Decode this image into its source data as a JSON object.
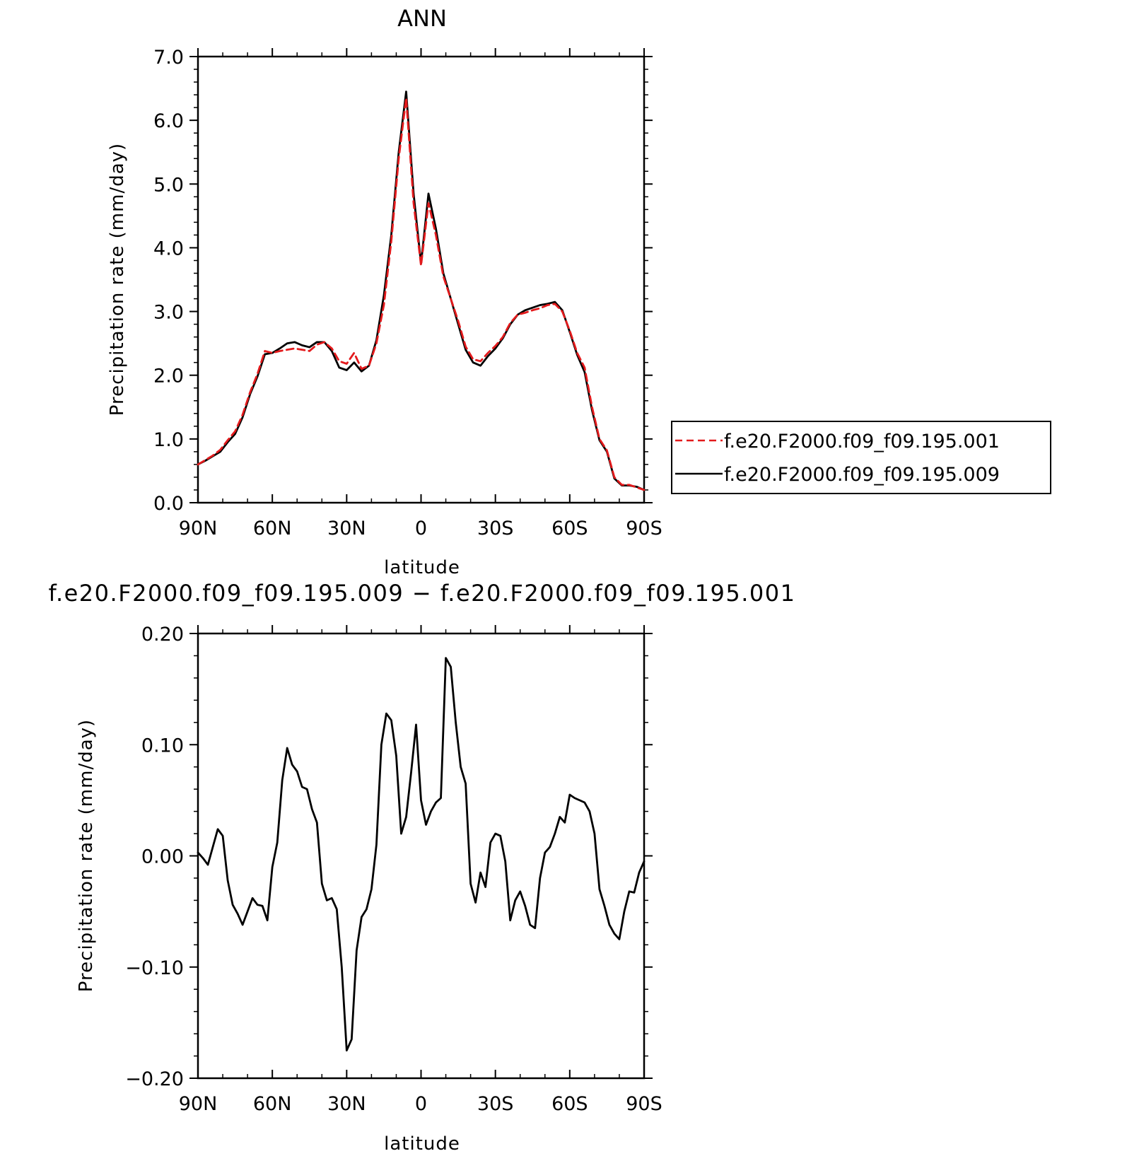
{
  "chart_data": [
    {
      "type": "line",
      "title": "ANN",
      "xlabel": "latitude",
      "ylabel": "Precipitation rate (mm/day)",
      "xlim": [
        90,
        -90
      ],
      "ylim": [
        0.0,
        7.0
      ],
      "xticks": [
        90,
        60,
        30,
        0,
        -30,
        -60,
        -90
      ],
      "xtick_labels": [
        "90N",
        "60N",
        "30N",
        "0",
        "30S",
        "60S",
        "90S"
      ],
      "yticks": [
        0.0,
        1.0,
        2.0,
        3.0,
        4.0,
        5.0,
        6.0,
        7.0
      ],
      "ytick_labels": [
        "0.0",
        "1.0",
        "2.0",
        "3.0",
        "4.0",
        "5.0",
        "6.0",
        "7.0"
      ],
      "grid": false,
      "legend_position": "right",
      "x": [
        90,
        87,
        84,
        81,
        78,
        75,
        72,
        69,
        66,
        63,
        60,
        57,
        54,
        51,
        48,
        45,
        42,
        39,
        36,
        33,
        30,
        27,
        24,
        21,
        18,
        15,
        12,
        9,
        6,
        3,
        0,
        -3,
        -6,
        -9,
        -12,
        -15,
        -18,
        -21,
        -24,
        -27,
        -30,
        -33,
        -36,
        -39,
        -42,
        -45,
        -48,
        -51,
        -54,
        -57,
        -60,
        -63,
        -66,
        -69,
        -72,
        -75,
        -78,
        -81,
        -84,
        -87,
        -90
      ],
      "series": [
        {
          "name": "f.e20.F2000.f09_f09.195.001",
          "color": "#e31a1c",
          "dash": "dashed",
          "values": [
            0.6,
            0.67,
            0.74,
            0.83,
            0.98,
            1.12,
            1.38,
            1.73,
            2.02,
            2.38,
            2.35,
            2.38,
            2.4,
            2.42,
            2.4,
            2.38,
            2.48,
            2.52,
            2.42,
            2.22,
            2.18,
            2.35,
            2.1,
            2.15,
            2.5,
            3.1,
            4.1,
            5.4,
            6.35,
            4.7,
            3.72,
            4.7,
            4.2,
            3.55,
            3.2,
            2.85,
            2.45,
            2.25,
            2.22,
            2.35,
            2.46,
            2.6,
            2.82,
            2.95,
            2.98,
            3.02,
            3.05,
            3.1,
            3.12,
            3.0,
            2.7,
            2.35,
            2.12,
            1.5,
            1.0,
            0.82,
            0.4,
            0.28,
            0.28,
            0.24,
            0.2
          ]
        },
        {
          "name": "f.e20.F2000.f09_f09.195.009",
          "color": "#000000",
          "dash": "solid",
          "values": [
            0.6,
            0.66,
            0.73,
            0.8,
            0.95,
            1.08,
            1.34,
            1.7,
            1.98,
            2.33,
            2.35,
            2.42,
            2.5,
            2.52,
            2.47,
            2.44,
            2.52,
            2.52,
            2.38,
            2.12,
            2.08,
            2.2,
            2.06,
            2.15,
            2.55,
            3.25,
            4.2,
            5.5,
            6.45,
            4.85,
            3.75,
            4.85,
            4.3,
            3.6,
            3.2,
            2.8,
            2.4,
            2.2,
            2.15,
            2.3,
            2.42,
            2.58,
            2.8,
            2.95,
            3.02,
            3.06,
            3.1,
            3.12,
            3.15,
            3.02,
            2.68,
            2.32,
            2.05,
            1.45,
            0.98,
            0.8,
            0.38,
            0.27,
            0.27,
            0.25,
            0.2
          ]
        }
      ]
    },
    {
      "type": "line",
      "title": "f.e20.F2000.f09_f09.195.009 − f.e20.F2000.f09_f09.195.001",
      "xlabel": "latitude",
      "ylabel": "Precipitation rate (mm/day)",
      "xlim": [
        90,
        -90
      ],
      "ylim": [
        -0.2,
        0.2
      ],
      "xticks": [
        90,
        60,
        30,
        0,
        -30,
        -60,
        -90
      ],
      "xtick_labels": [
        "90N",
        "60N",
        "30N",
        "0",
        "30S",
        "60S",
        "90S"
      ],
      "yticks": [
        -0.2,
        -0.1,
        0.0,
        0.1,
        0.2
      ],
      "ytick_labels": [
        "−0.20",
        "−0.10",
        "0.00",
        "0.10",
        "0.20"
      ],
      "grid": false,
      "x": [
        90,
        88,
        86,
        84,
        82,
        80,
        78,
        76,
        74,
        72,
        70,
        68,
        66,
        64,
        62,
        60,
        58,
        56,
        54,
        52,
        50,
        48,
        46,
        44,
        42,
        40,
        38,
        36,
        34,
        32,
        30,
        28,
        26,
        24,
        22,
        20,
        18,
        16,
        14,
        12,
        10,
        8,
        6,
        4,
        2,
        0,
        -2,
        -4,
        -6,
        -8,
        -10,
        -12,
        -14,
        -16,
        -18,
        -20,
        -22,
        -24,
        -26,
        -28,
        -30,
        -32,
        -34,
        -36,
        -38,
        -40,
        -42,
        -44,
        -46,
        -48,
        -50,
        -52,
        -54,
        -56,
        -58,
        -60,
        -62,
        -64,
        -66,
        -68,
        -70,
        -72,
        -74,
        -76,
        -78,
        -80,
        -82,
        -84,
        -86,
        -88,
        -90
      ],
      "series": [
        {
          "color": "#000000",
          "values": [
            0.003,
            -0.002,
            -0.008,
            0.008,
            0.024,
            0.018,
            -0.022,
            -0.044,
            -0.052,
            -0.062,
            -0.05,
            -0.038,
            -0.044,
            -0.045,
            -0.058,
            -0.01,
            0.012,
            0.068,
            0.097,
            0.082,
            0.076,
            0.062,
            0.06,
            0.042,
            0.03,
            -0.025,
            -0.04,
            -0.038,
            -0.048,
            -0.1,
            -0.175,
            -0.165,
            -0.085,
            -0.055,
            -0.048,
            -0.03,
            0.01,
            0.1,
            0.128,
            0.122,
            0.09,
            0.02,
            0.035,
            0.075,
            0.118,
            0.05,
            0.028,
            0.04,
            0.048,
            0.052,
            0.178,
            0.17,
            0.12,
            0.08,
            0.065,
            -0.025,
            -0.042,
            -0.015,
            -0.028,
            0.012,
            0.02,
            0.018,
            -0.005,
            -0.058,
            -0.04,
            -0.032,
            -0.045,
            -0.062,
            -0.065,
            -0.02,
            0.003,
            0.008,
            0.02,
            0.035,
            0.03,
            0.055,
            0.052,
            0.05,
            0.048,
            0.04,
            0.02,
            -0.03,
            -0.045,
            -0.062,
            -0.07,
            -0.075,
            -0.05,
            -0.032,
            -0.033,
            -0.015,
            -0.005
          ]
        }
      ]
    }
  ]
}
